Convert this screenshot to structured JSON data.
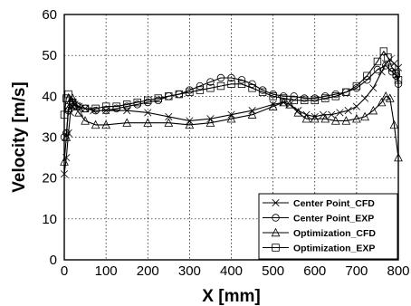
{
  "chart_data": {
    "type": "line",
    "xlabel": "X [mm]",
    "ylabel": "Velocity [m/s]",
    "xlim": [
      0,
      800
    ],
    "ylim": [
      0,
      60
    ],
    "xticks": [
      0,
      100,
      200,
      300,
      400,
      500,
      600,
      700,
      800
    ],
    "yticks": [
      0,
      10,
      20,
      30,
      40,
      50,
      60
    ],
    "grid": true,
    "legend_position": "bottom-right",
    "series": [
      {
        "name": "Center Point_CFD",
        "marker": "x",
        "x": [
          0,
          5,
          10,
          15,
          20,
          25,
          35,
          50,
          70,
          100,
          150,
          200,
          250,
          300,
          350,
          400,
          450,
          500,
          525,
          540,
          560,
          580,
          600,
          620,
          640,
          660,
          680,
          700,
          720,
          740,
          760,
          770,
          780,
          790,
          800
        ],
        "y": [
          21,
          25,
          31,
          36,
          37.5,
          38,
          37.5,
          37,
          36.5,
          36.5,
          36.5,
          36,
          35,
          34,
          34.5,
          35.5,
          36.5,
          38,
          38.5,
          38,
          36.5,
          35.5,
          35,
          35.5,
          35.5,
          36,
          36.5,
          37.5,
          39.5,
          42,
          46,
          48,
          49,
          48,
          47
        ]
      },
      {
        "name": "Center Point_EXP",
        "marker": "o",
        "x": [
          0,
          5,
          10,
          20,
          30,
          50,
          75,
          100,
          125,
          150,
          175,
          200,
          225,
          250,
          275,
          300,
          325,
          350,
          375,
          400,
          425,
          450,
          475,
          500,
          525,
          550,
          575,
          600,
          625,
          650,
          675,
          700,
          725,
          750,
          770,
          785,
          795,
          800
        ],
        "y": [
          30,
          31,
          36.5,
          38.5,
          37.5,
          37,
          36.5,
          36.5,
          37,
          37.5,
          38,
          38.5,
          39,
          40,
          40.5,
          41.5,
          42.5,
          43.5,
          44.5,
          44.5,
          44,
          43,
          41.5,
          40.5,
          40,
          40,
          39.5,
          39.5,
          40,
          40.5,
          41,
          42,
          44,
          46.5,
          47.5,
          46,
          45,
          43
        ]
      },
      {
        "name": "Optimization_CFD",
        "marker": "triangle",
        "x": [
          0,
          5,
          10,
          15,
          20,
          25,
          35,
          50,
          75,
          100,
          150,
          200,
          250,
          300,
          350,
          400,
          450,
          500,
          525,
          540,
          560,
          580,
          600,
          625,
          650,
          675,
          700,
          720,
          740,
          760,
          770,
          780,
          790,
          800
        ],
        "y": [
          24,
          30,
          37,
          39,
          39.5,
          38,
          36,
          34,
          33,
          33,
          33.5,
          33.5,
          33.5,
          33,
          33.5,
          34.5,
          35.5,
          37.5,
          38.5,
          38,
          36,
          34.5,
          34.5,
          34.5,
          34,
          34,
          34.5,
          35,
          36.5,
          38.5,
          40,
          39.5,
          33,
          25
        ]
      },
      {
        "name": "Optimization_EXP",
        "marker": "square",
        "x": [
          0,
          5,
          10,
          20,
          30,
          50,
          75,
          100,
          125,
          150,
          175,
          200,
          225,
          250,
          275,
          300,
          325,
          350,
          375,
          400,
          425,
          450,
          475,
          500,
          525,
          550,
          575,
          600,
          625,
          650,
          675,
          700,
          725,
          750,
          765,
          775,
          785,
          795,
          800
        ],
        "y": [
          35.5,
          39.5,
          40.5,
          38.5,
          37.5,
          37,
          37,
          37.5,
          37.5,
          38,
          38.5,
          39,
          39.5,
          40,
          40.5,
          41,
          41.5,
          42,
          42.5,
          43,
          43,
          42,
          41,
          40,
          39.5,
          39,
          39,
          39,
          39.5,
          40,
          41,
          42.5,
          45,
          48.5,
          51,
          49.5,
          47,
          45.5,
          44
        ]
      }
    ]
  }
}
